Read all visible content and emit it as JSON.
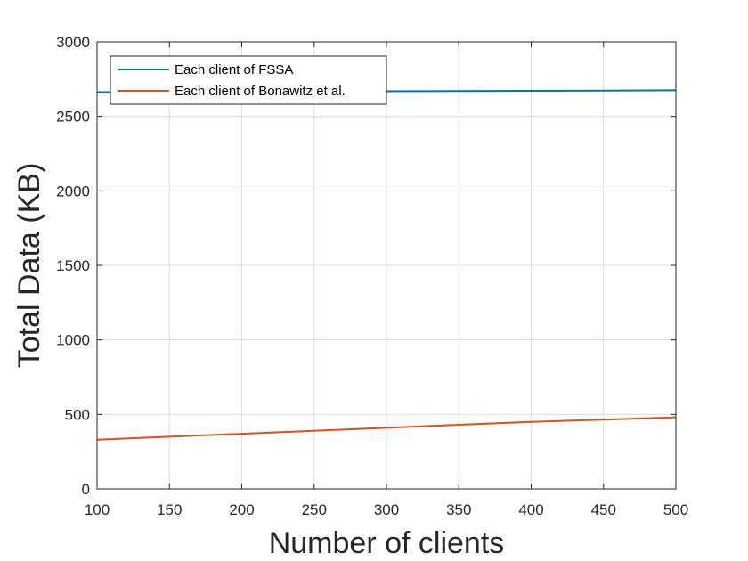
{
  "chart_data": {
    "type": "line",
    "xlabel": "Number of clients",
    "ylabel": "Total Data (KB)",
    "xlim": [
      100,
      500
    ],
    "ylim": [
      0,
      3000
    ],
    "x_ticks": [
      100,
      150,
      200,
      250,
      300,
      350,
      400,
      450,
      500
    ],
    "y_ticks": [
      0,
      500,
      1000,
      1500,
      2000,
      2500,
      3000
    ],
    "grid": true,
    "legend_position": "top-left",
    "series": [
      {
        "name": "Each client of FSSA",
        "color": "#0072BD",
        "x": [
          100,
          150,
          200,
          250,
          300,
          350,
          400,
          450,
          500
        ],
        "y": [
          2662,
          2664,
          2665,
          2667,
          2668,
          2670,
          2671,
          2673,
          2675
        ]
      },
      {
        "name": "Each client of Bonawitz et al.",
        "color": "#D95319",
        "x": [
          100,
          150,
          200,
          250,
          300,
          350,
          400,
          450,
          500
        ],
        "y": [
          330,
          350,
          370,
          390,
          410,
          430,
          450,
          465,
          480
        ]
      }
    ]
  }
}
